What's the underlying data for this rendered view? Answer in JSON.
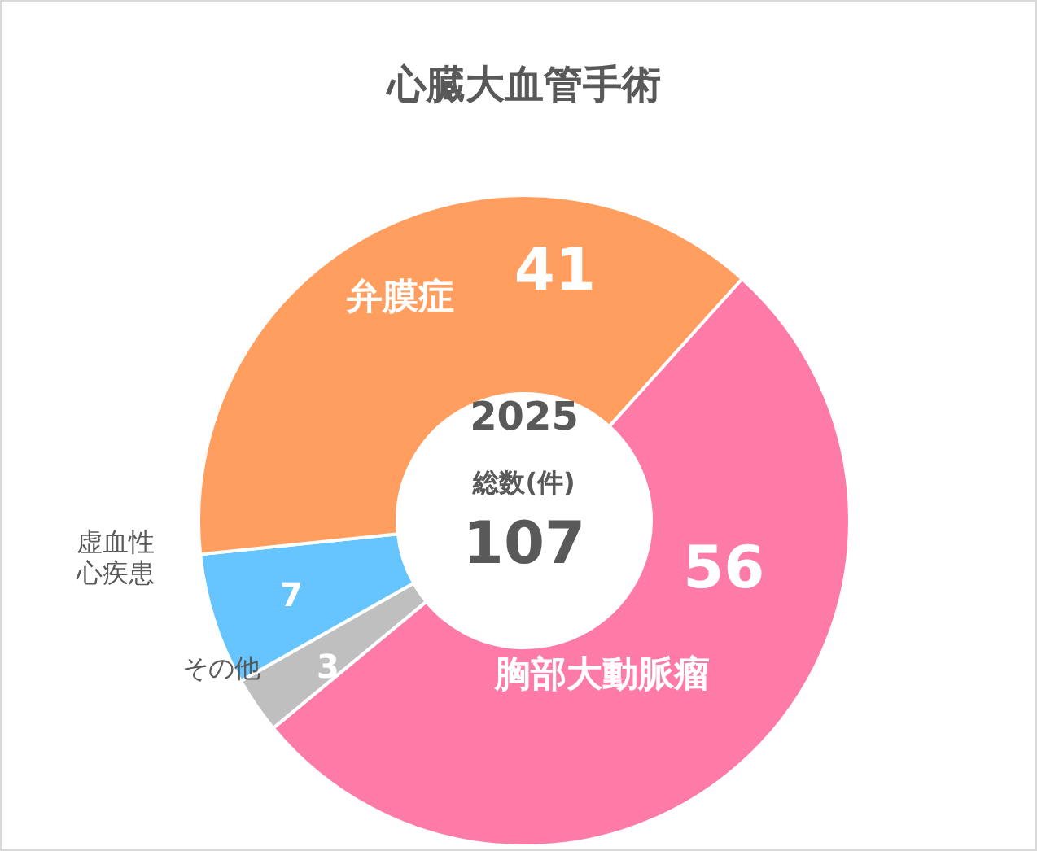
{
  "chart_data": {
    "type": "donut",
    "title": "心臓大血管手術",
    "categories": [
      "胸部大動脈瘤",
      "その他",
      "虚血性心疾患",
      "弁膜症"
    ],
    "values": [
      56,
      3,
      7,
      41
    ],
    "colors": [
      "#ff7ba7",
      "#bfbfbf",
      "#66c5ff",
      "#ff9e5e"
    ],
    "data_labels": true,
    "legend": false,
    "annotations": [
      "2025",
      "総数(件)",
      "107"
    ]
  }
}
